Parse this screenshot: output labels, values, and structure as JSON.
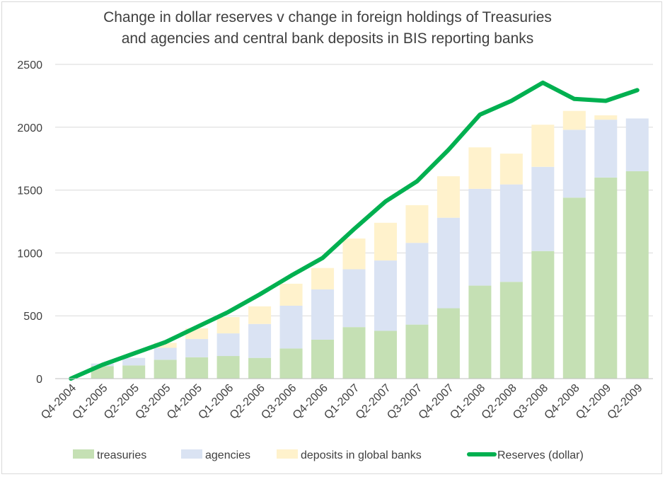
{
  "chart_data": {
    "type": "bar",
    "stacked": true,
    "title": "Change in dollar reserves v change in foreign holdings of Treasuries and agencies and central bank deposits in BIS reporting banks",
    "title_lines": [
      "Change in dollar reserves v change in foreign holdings of Treasuries",
      "and agencies and central bank deposits in BIS reporting banks"
    ],
    "xlabel": "",
    "ylabel": "",
    "ylim": [
      0,
      2500
    ],
    "yticks": [
      0,
      500,
      1000,
      1500,
      2000,
      2500
    ],
    "grid": true,
    "legend_position": "bottom",
    "categories": [
      "Q4-2004",
      "Q1-2005",
      "Q2-2005",
      "Q3-2005",
      "Q4-2005",
      "Q1-2006",
      "Q2-2006",
      "Q3-2006",
      "Q4-2006",
      "Q1-2007",
      "Q2-2007",
      "Q3-2007",
      "Q4-2007",
      "Q1-2008",
      "Q2-2008",
      "Q3-2008",
      "Q4-2008",
      "Q1-2009",
      "Q2-2009"
    ],
    "series": [
      {
        "name": "treasuries",
        "kind": "bar",
        "color": "#c5e0b4",
        "values": [
          0,
          100,
          105,
          150,
          170,
          180,
          165,
          240,
          310,
          410,
          380,
          430,
          560,
          740,
          770,
          1015,
          1440,
          1600,
          1650
        ]
      },
      {
        "name": "agencies",
        "kind": "bar",
        "color": "#dae3f3",
        "values": [
          0,
          20,
          60,
          95,
          145,
          180,
          270,
          340,
          400,
          460,
          560,
          650,
          720,
          770,
          775,
          670,
          540,
          460,
          420
        ]
      },
      {
        "name": "deposits in global banks",
        "kind": "bar",
        "color": "#fff2cc",
        "values": [
          0,
          0,
          0,
          40,
          85,
          130,
          140,
          175,
          170,
          245,
          300,
          300,
          330,
          330,
          245,
          335,
          150,
          35,
          0
        ]
      },
      {
        "name": "Reserves (dollar)",
        "kind": "line",
        "color": "#00b050",
        "values": [
          0,
          110,
          200,
          290,
          410,
          530,
          670,
          820,
          960,
          1190,
          1410,
          1570,
          1820,
          2100,
          2210,
          2355,
          2225,
          2210,
          2295
        ]
      }
    ]
  }
}
